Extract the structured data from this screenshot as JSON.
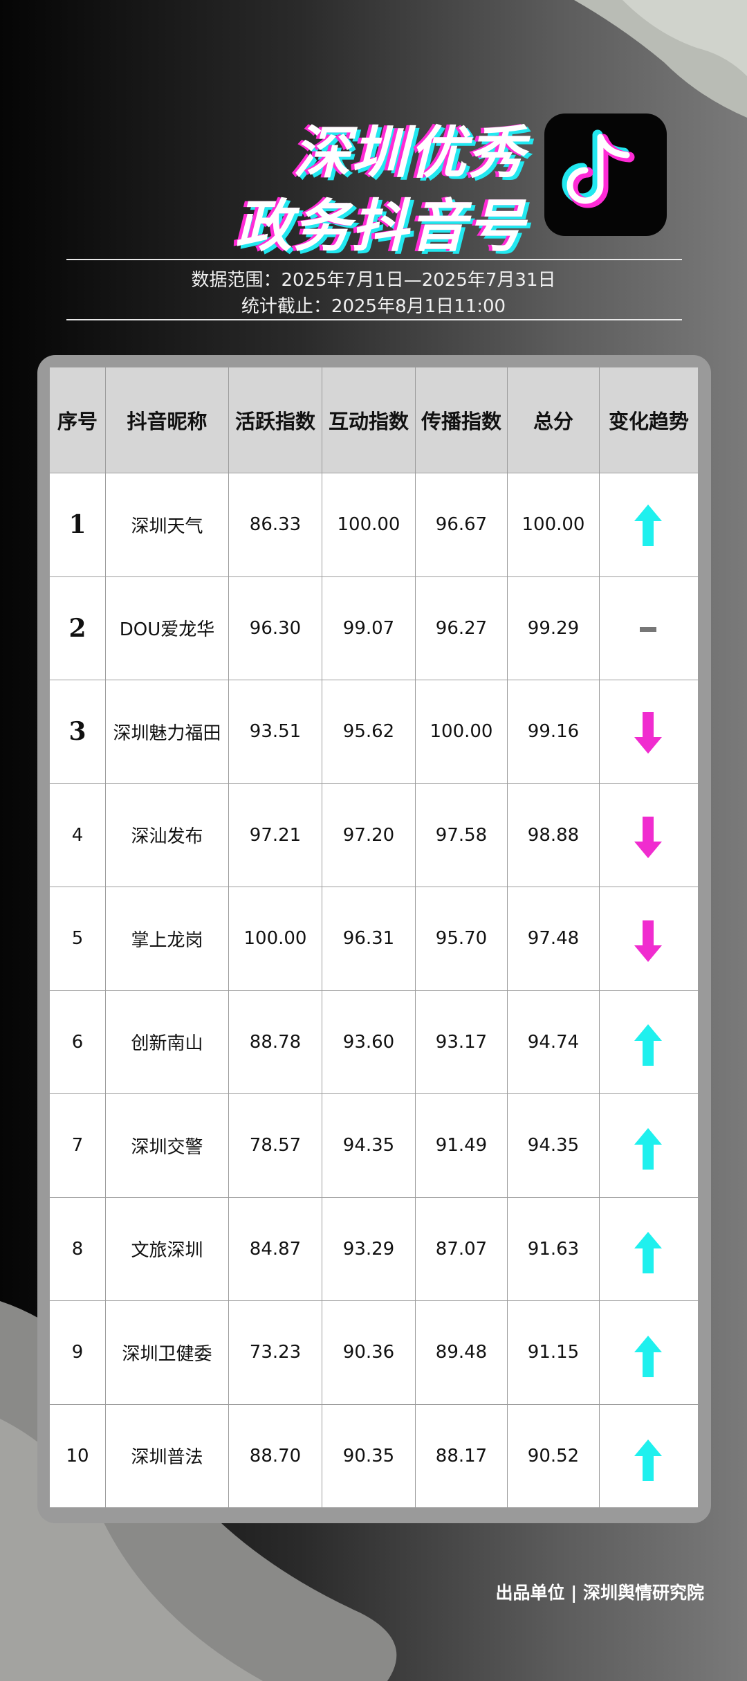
{
  "header": {
    "title_lines": [
      "深圳优秀",
      "政务抖音号"
    ],
    "info_lines": [
      "数据范围：2025年7月1日—2025年7月31日",
      "统计截止：2025年8月1日11:00"
    ]
  },
  "table": {
    "columns": [
      "序号",
      "抖音昵称",
      "活跃指数",
      "互动指数",
      "传播指数",
      "总分",
      "变化趋势"
    ],
    "rows": [
      [
        "1",
        "深圳天气",
        "86.33",
        "100.00",
        "96.67",
        "100.00"
      ],
      [
        "2",
        "DOU爱龙华",
        "96.30",
        "99.07",
        "96.27",
        "99.29"
      ],
      [
        "3",
        "深圳魅力福田",
        "93.51",
        "95.62",
        "100.00",
        "99.16"
      ],
      [
        "4",
        "深汕发布",
        "97.21",
        "97.20",
        "97.58",
        "98.88"
      ],
      [
        "5",
        "掌上龙岗",
        "100.00",
        "96.31",
        "95.70",
        "97.48"
      ],
      [
        "6",
        "创新南山",
        "88.78",
        "93.60",
        "93.17",
        "94.74"
      ],
      [
        "7",
        "深圳交警",
        "78.57",
        "94.35",
        "91.49",
        "94.35"
      ],
      [
        "8",
        "文旅深圳",
        "84.87",
        "93.29",
        "87.07",
        "91.63"
      ],
      [
        "9",
        "深圳卫健委",
        "73.23",
        "90.36",
        "89.48",
        "91.15"
      ],
      [
        "10",
        "深圳普法",
        "88.70",
        "90.35",
        "88.17",
        "90.52"
      ]
    ]
  },
  "footer": "出品单位 | 深圳舆情研究院"
}
